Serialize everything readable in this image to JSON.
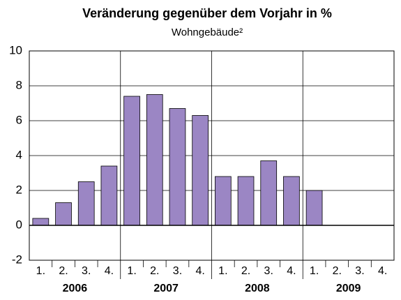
{
  "chart_data": {
    "type": "bar",
    "title": "Veränderung gegenüber dem Vorjahr in %",
    "subtitle": "Wohngebäude²",
    "categories": [
      "1.",
      "2.",
      "3.",
      "4.",
      "1.",
      "2.",
      "3.",
      "4.",
      "1.",
      "2.",
      "3.",
      "4.",
      "1.",
      "2.",
      "3.",
      "4."
    ],
    "groups": [
      "2006",
      "2007",
      "2008",
      "2009"
    ],
    "values": [
      0.4,
      1.3,
      2.5,
      3.4,
      7.4,
      7.5,
      6.7,
      6.3,
      2.8,
      2.8,
      3.7,
      2.8,
      2.0,
      null,
      null,
      null
    ],
    "color": "#9b86c4",
    "ylim": [
      -2,
      10
    ],
    "yticks": [
      -2,
      0,
      2,
      4,
      6,
      8,
      10
    ],
    "grid": true
  }
}
